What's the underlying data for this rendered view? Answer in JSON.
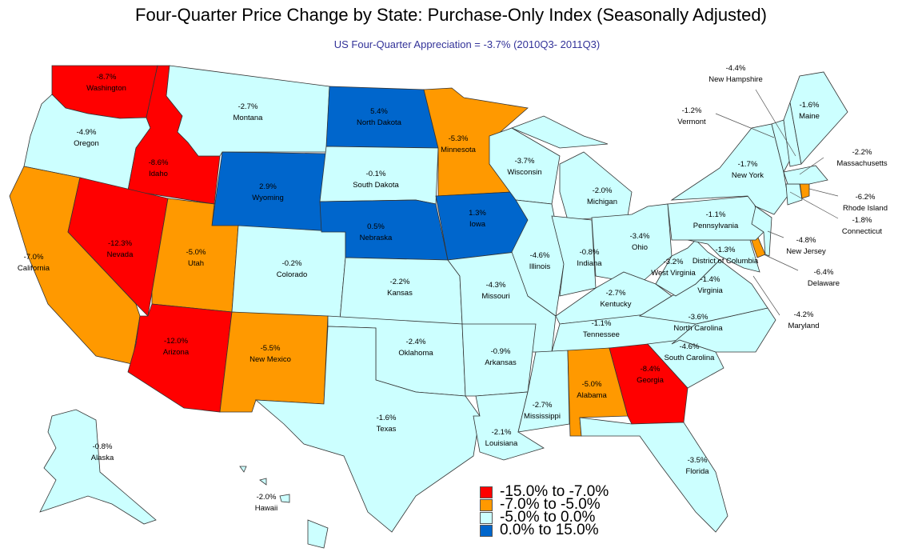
{
  "title": "Four-Quarter Price Change by State: Purchase-Only Index (Seasonally Adjusted)",
  "subtitle": "US Four-Quarter Appreciation = -3.7% (2010Q3- 2011Q3)",
  "legend": [
    {
      "label": "-15.0% to -7.0%",
      "color": "#FF0000",
      "key": "red"
    },
    {
      "label": "-7.0% to -5.0%",
      "color": "#FF9900",
      "key": "orange"
    },
    {
      "label": "-5.0% to 0.0%",
      "color": "#CCFFFF",
      "key": "cyan"
    },
    {
      "label": "0.0% to 15.0%",
      "color": "#0066CC",
      "key": "blue"
    }
  ],
  "map": {
    "states": [
      {
        "name": "Washington",
        "value": "-8.7%",
        "category": "red"
      },
      {
        "name": "Oregon",
        "value": "-4.9%",
        "category": "cyan"
      },
      {
        "name": "California",
        "value": "-7.0%",
        "category": "orange"
      },
      {
        "name": "Idaho",
        "value": "-8.6%",
        "category": "red"
      },
      {
        "name": "Nevada",
        "value": "-12.3%",
        "category": "red"
      },
      {
        "name": "Montana",
        "value": "-2.7%",
        "category": "cyan"
      },
      {
        "name": "Wyoming",
        "value": "2.9%",
        "category": "blue"
      },
      {
        "name": "Utah",
        "value": "-5.0%",
        "category": "orange"
      },
      {
        "name": "Arizona",
        "value": "-12.0%",
        "category": "red"
      },
      {
        "name": "Colorado",
        "value": "-0.2%",
        "category": "cyan"
      },
      {
        "name": "New Mexico",
        "value": "-5.5%",
        "category": "orange"
      },
      {
        "name": "North Dakota",
        "value": "5.4%",
        "category": "blue"
      },
      {
        "name": "South Dakota",
        "value": "-0.1%",
        "category": "cyan"
      },
      {
        "name": "Nebraska",
        "value": "0.5%",
        "category": "blue"
      },
      {
        "name": "Kansas",
        "value": "-2.2%",
        "category": "cyan"
      },
      {
        "name": "Oklahoma",
        "value": "-2.4%",
        "category": "cyan"
      },
      {
        "name": "Texas",
        "value": "-1.6%",
        "category": "cyan"
      },
      {
        "name": "Minnesota",
        "value": "-5.3%",
        "category": "orange"
      },
      {
        "name": "Iowa",
        "value": "1.3%",
        "category": "blue"
      },
      {
        "name": "Missouri",
        "value": "-4.3%",
        "category": "cyan"
      },
      {
        "name": "Arkansas",
        "value": "-0.9%",
        "category": "cyan"
      },
      {
        "name": "Louisiana",
        "value": "-2.1%",
        "category": "cyan"
      },
      {
        "name": "Wisconsin",
        "value": "-3.7%",
        "category": "cyan"
      },
      {
        "name": "Illinois",
        "value": "-4.6%",
        "category": "cyan"
      },
      {
        "name": "Michigan",
        "value": "-2.0%",
        "category": "cyan"
      },
      {
        "name": "Indiana",
        "value": "-0.8%",
        "category": "cyan"
      },
      {
        "name": "Ohio",
        "value": "-3.4%",
        "category": "cyan"
      },
      {
        "name": "Kentucky",
        "value": "-2.7%",
        "category": "cyan"
      },
      {
        "name": "Tennessee",
        "value": "-1.1%",
        "category": "cyan"
      },
      {
        "name": "Mississippi",
        "value": "-2.7%",
        "category": "cyan"
      },
      {
        "name": "Alabama",
        "value": "-5.0%",
        "category": "orange"
      },
      {
        "name": "Georgia",
        "value": "-8.4%",
        "category": "red"
      },
      {
        "name": "Florida",
        "value": "-3.5%",
        "category": "cyan"
      },
      {
        "name": "South Carolina",
        "value": "-4.6%",
        "category": "cyan"
      },
      {
        "name": "North Carolina",
        "value": "-3.6%",
        "category": "cyan"
      },
      {
        "name": "Virginia",
        "value": "-1.4%",
        "category": "cyan"
      },
      {
        "name": "West Virginia",
        "value": "-3.2%",
        "category": "cyan"
      },
      {
        "name": "District of Columbia",
        "value": "-1.3%",
        "category": "cyan"
      },
      {
        "name": "Maryland",
        "value": "-4.2%",
        "category": "cyan"
      },
      {
        "name": "Delaware",
        "value": "-6.4%",
        "category": "orange"
      },
      {
        "name": "Pennsylvania",
        "value": "-1.1%",
        "category": "cyan"
      },
      {
        "name": "New Jersey",
        "value": "-4.8%",
        "category": "cyan"
      },
      {
        "name": "New York",
        "value": "-1.7%",
        "category": "cyan"
      },
      {
        "name": "Connecticut",
        "value": "-1.8%",
        "category": "cyan"
      },
      {
        "name": "Rhode Island",
        "value": "-6.2%",
        "category": "orange"
      },
      {
        "name": "Massachusetts",
        "value": "-2.2%",
        "category": "cyan"
      },
      {
        "name": "Vermont",
        "value": "-1.2%",
        "category": "cyan"
      },
      {
        "name": "New Hampshire",
        "value": "-4.4%",
        "category": "cyan"
      },
      {
        "name": "Maine",
        "value": "-1.6%",
        "category": "cyan"
      },
      {
        "name": "Alaska",
        "value": "-0.8%",
        "category": "cyan"
      },
      {
        "name": "Hawaii",
        "value": "-2.0%",
        "category": "cyan"
      }
    ]
  }
}
